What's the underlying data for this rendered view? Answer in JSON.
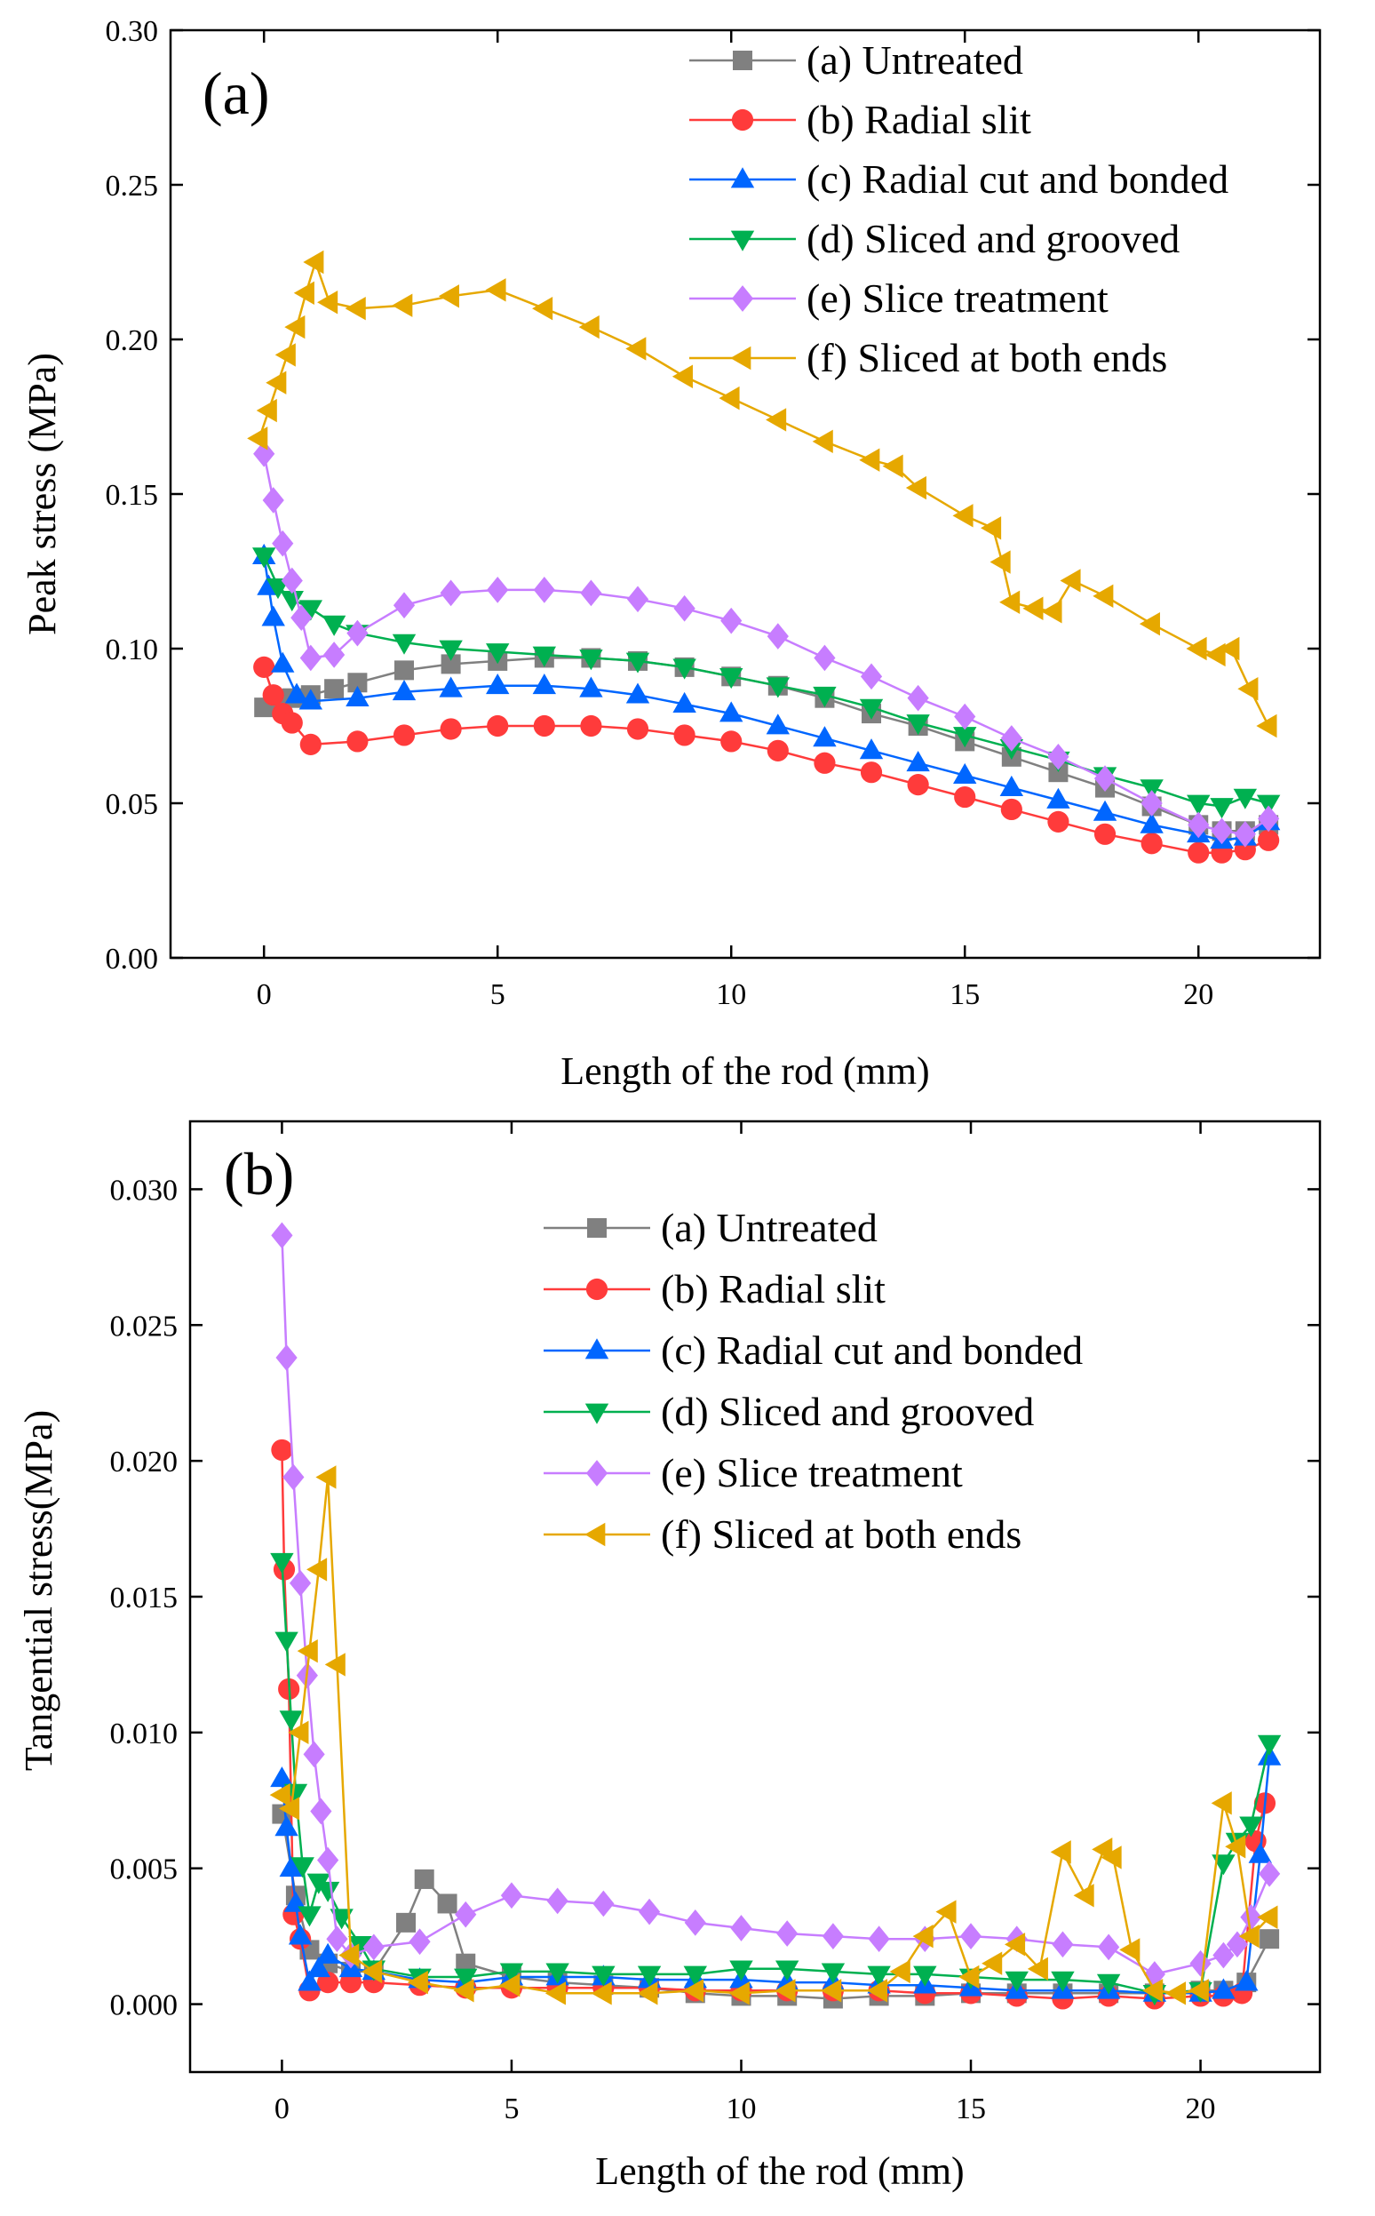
{
  "chart_data": [
    {
      "type": "line",
      "panel_label": "(a)",
      "xlabel": "Length of the rod (mm)",
      "ylabel": "Peak stress (MPa)",
      "xlim": [
        -2,
        22.6
      ],
      "ylim": [
        0,
        0.3
      ],
      "xticks": [
        0,
        5,
        10,
        15,
        20
      ],
      "xtick_labels": [
        "0",
        "5",
        "10",
        "15",
        "20"
      ],
      "yticks": [
        0,
        0.05,
        0.1,
        0.15,
        0.2,
        0.25,
        0.3
      ],
      "ytick_labels": [
        "0.00",
        "0.05",
        "0.10",
        "0.15",
        "0.20",
        "0.25",
        "0.30"
      ],
      "legend_position": "top-right",
      "series": [
        {
          "name": "(a) Untreated",
          "color": "#808080",
          "marker": "square",
          "x": [
            0,
            0.3,
            0.6,
            1,
            1.5,
            2,
            3,
            4,
            5,
            6,
            7,
            8,
            9,
            10,
            11,
            12,
            13,
            14,
            15,
            16,
            17,
            18,
            19,
            20,
            20.5,
            21,
            21.5
          ],
          "y": [
            0.081,
            0.083,
            0.084,
            0.085,
            0.087,
            0.089,
            0.093,
            0.095,
            0.096,
            0.097,
            0.097,
            0.096,
            0.094,
            0.091,
            0.088,
            0.084,
            0.079,
            0.075,
            0.07,
            0.065,
            0.06,
            0.055,
            0.049,
            0.043,
            0.041,
            0.041,
            0.043
          ]
        },
        {
          "name": "(b) Radial slit",
          "color": "#ff3b3b",
          "marker": "circle",
          "x": [
            0,
            0.2,
            0.4,
            0.6,
            1,
            2,
            3,
            4,
            5,
            6,
            7,
            8,
            9,
            10,
            11,
            12,
            13,
            14,
            15,
            16,
            17,
            18,
            19,
            20,
            20.5,
            21,
            21.5
          ],
          "y": [
            0.094,
            0.085,
            0.079,
            0.076,
            0.069,
            0.07,
            0.072,
            0.074,
            0.075,
            0.075,
            0.075,
            0.074,
            0.072,
            0.07,
            0.067,
            0.063,
            0.06,
            0.056,
            0.052,
            0.048,
            0.044,
            0.04,
            0.037,
            0.034,
            0.034,
            0.035,
            0.038
          ]
        },
        {
          "name": "(c) Radial cut and bonded",
          "color": "#0066ff",
          "marker": "triangle-up",
          "x": [
            0,
            0.1,
            0.2,
            0.4,
            0.7,
            1,
            2,
            3,
            4,
            5,
            6,
            7,
            8,
            9,
            10,
            11,
            12,
            13,
            14,
            15,
            16,
            17,
            18,
            19,
            20,
            20.5,
            21,
            21.5
          ],
          "y": [
            0.13,
            0.12,
            0.11,
            0.095,
            0.085,
            0.083,
            0.084,
            0.086,
            0.087,
            0.088,
            0.088,
            0.087,
            0.085,
            0.082,
            0.079,
            0.075,
            0.071,
            0.067,
            0.063,
            0.059,
            0.055,
            0.051,
            0.047,
            0.043,
            0.04,
            0.038,
            0.039,
            0.044
          ]
        },
        {
          "name": "(d) Sliced and grooved",
          "color": "#00b050",
          "marker": "triangle-down",
          "x": [
            0,
            0.3,
            0.6,
            1,
            1.5,
            2,
            3,
            4,
            5,
            6,
            7,
            8,
            9,
            10,
            11,
            12,
            13,
            14,
            15,
            16,
            17,
            18,
            19,
            20,
            20.5,
            21,
            21.5
          ],
          "y": [
            0.13,
            0.12,
            0.116,
            0.113,
            0.108,
            0.105,
            0.102,
            0.1,
            0.099,
            0.098,
            0.097,
            0.096,
            0.094,
            0.091,
            0.088,
            0.085,
            0.081,
            0.076,
            0.072,
            0.068,
            0.064,
            0.059,
            0.055,
            0.05,
            0.049,
            0.052,
            0.05
          ]
        },
        {
          "name": "(e) Slice treatment",
          "color": "#c77dff",
          "marker": "diamond",
          "x": [
            0,
            0.2,
            0.4,
            0.6,
            0.8,
            1,
            1.5,
            2,
            3,
            4,
            5,
            6,
            7,
            8,
            9,
            10,
            11,
            12,
            13,
            14,
            15,
            16,
            17,
            18,
            19,
            20,
            20.5,
            21,
            21.5
          ],
          "y": [
            0.163,
            0.148,
            0.134,
            0.122,
            0.11,
            0.097,
            0.098,
            0.105,
            0.114,
            0.118,
            0.119,
            0.119,
            0.118,
            0.116,
            0.113,
            0.109,
            0.104,
            0.097,
            0.091,
            0.084,
            0.078,
            0.071,
            0.065,
            0.058,
            0.05,
            0.043,
            0.041,
            0.04,
            0.045
          ]
        },
        {
          "name": "(f) Sliced at both ends",
          "color": "#e6a800",
          "marker": "triangle-left",
          "x": [
            -0.1,
            0.1,
            0.3,
            0.5,
            0.7,
            0.9,
            1.1,
            1.4,
            2,
            3,
            4,
            5,
            6,
            7,
            8,
            9,
            10,
            11,
            12,
            13,
            13.5,
            14,
            15,
            15.6,
            15.8,
            16,
            16.5,
            16.9,
            17.3,
            18,
            19,
            20,
            20.4,
            20.7,
            21.1,
            21.5
          ],
          "y": [
            0.168,
            0.177,
            0.186,
            0.195,
            0.204,
            0.215,
            0.225,
            0.212,
            0.21,
            0.211,
            0.214,
            0.216,
            0.21,
            0.204,
            0.197,
            0.188,
            0.181,
            0.174,
            0.167,
            0.161,
            0.159,
            0.152,
            0.143,
            0.139,
            0.128,
            0.115,
            0.113,
            0.112,
            0.122,
            0.117,
            0.108,
            0.1,
            0.098,
            0.1,
            0.087,
            0.075
          ]
        }
      ]
    },
    {
      "type": "line",
      "panel_label": "(b)",
      "xlabel": "Length of the rod (mm)",
      "ylabel": "Tangential stress(MPa)",
      "xlim": [
        -2,
        22.6
      ],
      "ylim": [
        -0.0025,
        0.0325
      ],
      "xticks": [
        0,
        5,
        10,
        15,
        20
      ],
      "xtick_labels": [
        "0",
        "5",
        "10",
        "15",
        "20"
      ],
      "yticks": [
        0,
        0.005,
        0.01,
        0.015,
        0.02,
        0.025,
        0.03
      ],
      "ytick_labels": [
        "0.000",
        "0.005",
        "0.010",
        "0.015",
        "0.020",
        "0.025",
        "0.030"
      ],
      "legend_position": "top-right",
      "series": [
        {
          "name": "(a) Untreated",
          "color": "#808080",
          "marker": "square",
          "x": [
            0,
            0.3,
            0.6,
            1,
            1.5,
            2,
            2.7,
            3.1,
            3.6,
            4,
            5,
            6,
            7,
            8,
            9,
            10,
            11,
            12,
            13,
            14,
            15,
            16,
            17,
            18,
            19,
            20,
            20.5,
            21,
            21.5
          ],
          "y": [
            0.007,
            0.004,
            0.002,
            0.0015,
            0.0012,
            0.0012,
            0.003,
            0.0046,
            0.0037,
            0.0015,
            0.001,
            0.0008,
            0.0007,
            0.0006,
            0.0004,
            0.0003,
            0.0003,
            0.0002,
            0.0003,
            0.0003,
            0.0004,
            0.0004,
            0.0004,
            0.0004,
            0.0004,
            0.0005,
            0.0005,
            0.0008,
            0.0024
          ]
        },
        {
          "name": "(b) Radial slit",
          "color": "#ff3b3b",
          "marker": "circle",
          "x": [
            0,
            0.05,
            0.15,
            0.25,
            0.4,
            0.6,
            1,
            1.5,
            2,
            3,
            4,
            5,
            6,
            7,
            8,
            9,
            10,
            11,
            12,
            13,
            14,
            15,
            16,
            17,
            18,
            19,
            20,
            20.5,
            20.9,
            21.2,
            21.4
          ],
          "y": [
            0.0204,
            0.016,
            0.0116,
            0.0033,
            0.0024,
            0.0005,
            0.0008,
            0.0008,
            0.0008,
            0.0007,
            0.0006,
            0.0006,
            0.0006,
            0.0006,
            0.0006,
            0.0005,
            0.0005,
            0.0005,
            0.0005,
            0.0005,
            0.0004,
            0.0004,
            0.0003,
            0.0002,
            0.0003,
            0.0002,
            0.0003,
            0.0003,
            0.0004,
            0.006,
            0.0074
          ]
        },
        {
          "name": "(c) Radial cut and bonded",
          "color": "#0066ff",
          "marker": "triangle-up",
          "x": [
            0,
            0.1,
            0.2,
            0.3,
            0.4,
            0.6,
            0.8,
            1,
            1.5,
            2,
            3,
            4,
            5,
            6,
            7,
            8,
            9,
            10,
            11,
            12,
            13,
            14,
            15,
            16,
            17,
            18,
            19,
            20,
            20.5,
            21,
            21.3,
            21.5
          ],
          "y": [
            0.0083,
            0.0065,
            0.005,
            0.0037,
            0.0025,
            0.0008,
            0.0013,
            0.0018,
            0.0013,
            0.0012,
            0.0009,
            0.0008,
            0.001,
            0.001,
            0.001,
            0.0009,
            0.0009,
            0.0009,
            0.0008,
            0.0008,
            0.0007,
            0.0007,
            0.0006,
            0.0005,
            0.0005,
            0.0005,
            0.0004,
            0.0004,
            0.0005,
            0.0008,
            0.0055,
            0.0091
          ]
        },
        {
          "name": "(d) Sliced and grooved",
          "color": "#00b050",
          "marker": "triangle-down",
          "x": [
            0,
            0.1,
            0.2,
            0.3,
            0.45,
            0.6,
            0.8,
            1,
            1.3,
            1.7,
            2,
            3,
            4,
            5,
            6,
            7,
            8,
            9,
            10,
            11,
            12,
            13,
            14,
            15,
            16,
            17,
            18,
            19,
            20,
            20.5,
            20.8,
            21.1,
            21.5
          ],
          "y": [
            0.0163,
            0.0134,
            0.0105,
            0.0078,
            0.0051,
            0.0033,
            0.0045,
            0.0042,
            0.0032,
            0.0022,
            0.0013,
            0.001,
            0.001,
            0.0012,
            0.0012,
            0.0011,
            0.0011,
            0.0011,
            0.0013,
            0.0013,
            0.0012,
            0.0011,
            0.0011,
            0.001,
            0.0009,
            0.0009,
            0.0008,
            0.0004,
            0.0005,
            0.0052,
            0.006,
            0.0066,
            0.0096
          ]
        },
        {
          "name": "(e) Slice treatment",
          "color": "#c77dff",
          "marker": "diamond",
          "x": [
            0,
            0.1,
            0.25,
            0.4,
            0.55,
            0.7,
            0.85,
            1,
            1.2,
            1.5,
            2,
            3,
            4,
            5,
            6,
            7,
            8,
            9,
            10,
            11,
            12,
            13,
            14,
            15,
            16,
            17,
            18,
            19,
            20,
            20.5,
            20.8,
            21.1,
            21.5
          ],
          "y": [
            0.0283,
            0.0238,
            0.0194,
            0.0155,
            0.0121,
            0.0092,
            0.0071,
            0.0053,
            0.0024,
            0.0018,
            0.0021,
            0.0023,
            0.0033,
            0.004,
            0.0038,
            0.0037,
            0.0034,
            0.003,
            0.0028,
            0.0026,
            0.0025,
            0.0024,
            0.0024,
            0.0025,
            0.0024,
            0.0022,
            0.0021,
            0.0011,
            0.0015,
            0.0018,
            0.0022,
            0.0032,
            0.0048
          ]
        },
        {
          "name": "(f) Sliced at both ends",
          "color": "#e6a800",
          "marker": "triangle-left",
          "x": [
            0,
            0.2,
            0.4,
            0.6,
            0.8,
            1,
            1.2,
            1.5,
            2,
            3,
            4,
            5,
            6,
            7,
            8,
            9,
            10,
            11,
            12,
            13,
            13.5,
            14,
            14.5,
            15,
            15.5,
            16,
            16.5,
            17,
            17.5,
            17.9,
            18.1,
            18.5,
            19,
            19.5,
            20,
            20.5,
            20.8,
            21.1,
            21.5
          ],
          "y": [
            0.0077,
            0.0072,
            0.01,
            0.013,
            0.016,
            0.0194,
            0.0125,
            0.0018,
            0.0012,
            0.0008,
            0.0005,
            0.0007,
            0.0004,
            0.0004,
            0.0004,
            0.0005,
            0.0004,
            0.0005,
            0.0005,
            0.0005,
            0.0012,
            0.0025,
            0.0034,
            0.001,
            0.0015,
            0.0022,
            0.0013,
            0.0056,
            0.004,
            0.0057,
            0.0054,
            0.002,
            0.0005,
            0.0004,
            0.0005,
            0.0074,
            0.0058,
            0.0025,
            0.0032
          ]
        }
      ]
    }
  ]
}
